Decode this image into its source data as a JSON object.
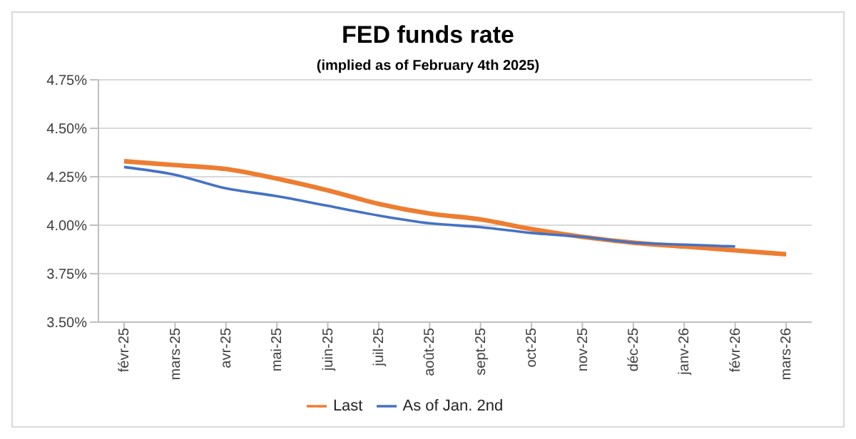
{
  "chart_data": {
    "type": "line",
    "title": "FED funds rate",
    "subtitle": "(implied as of February 4th 2025)",
    "categories": [
      "févr-25",
      "mars-25",
      "avr-25",
      "mai-25",
      "juin-25",
      "juil-25",
      "août-25",
      "sept-25",
      "oct-25",
      "nov-25",
      "déc-25",
      "janv-26",
      "févr-26",
      "mars-26"
    ],
    "series": [
      {
        "name": "Last",
        "color": "#ed7d31",
        "values": [
          4.33,
          4.31,
          4.29,
          4.24,
          4.18,
          4.11,
          4.06,
          4.03,
          3.98,
          3.94,
          3.91,
          3.89,
          3.87,
          3.85
        ]
      },
      {
        "name": "As of Jan. 2nd",
        "color": "#4472c4",
        "values": [
          4.3,
          4.26,
          4.19,
          4.15,
          4.1,
          4.05,
          4.01,
          3.99,
          3.96,
          3.94,
          3.91,
          3.9,
          3.89,
          null
        ]
      }
    ],
    "ylim": [
      3.5,
      4.75
    ],
    "yticks": [
      {
        "value": 3.5,
        "label": "3.50%"
      },
      {
        "value": 3.75,
        "label": "3.75%"
      },
      {
        "value": 4,
        "label": "4.00%"
      },
      {
        "value": 4.25,
        "label": "4.25%"
      },
      {
        "value": 4.5,
        "label": "4.50%"
      },
      {
        "value": 4.75,
        "label": "4.75%"
      }
    ],
    "grid": "y",
    "legend": "bottom",
    "marker": "none",
    "line_style": "solid"
  }
}
